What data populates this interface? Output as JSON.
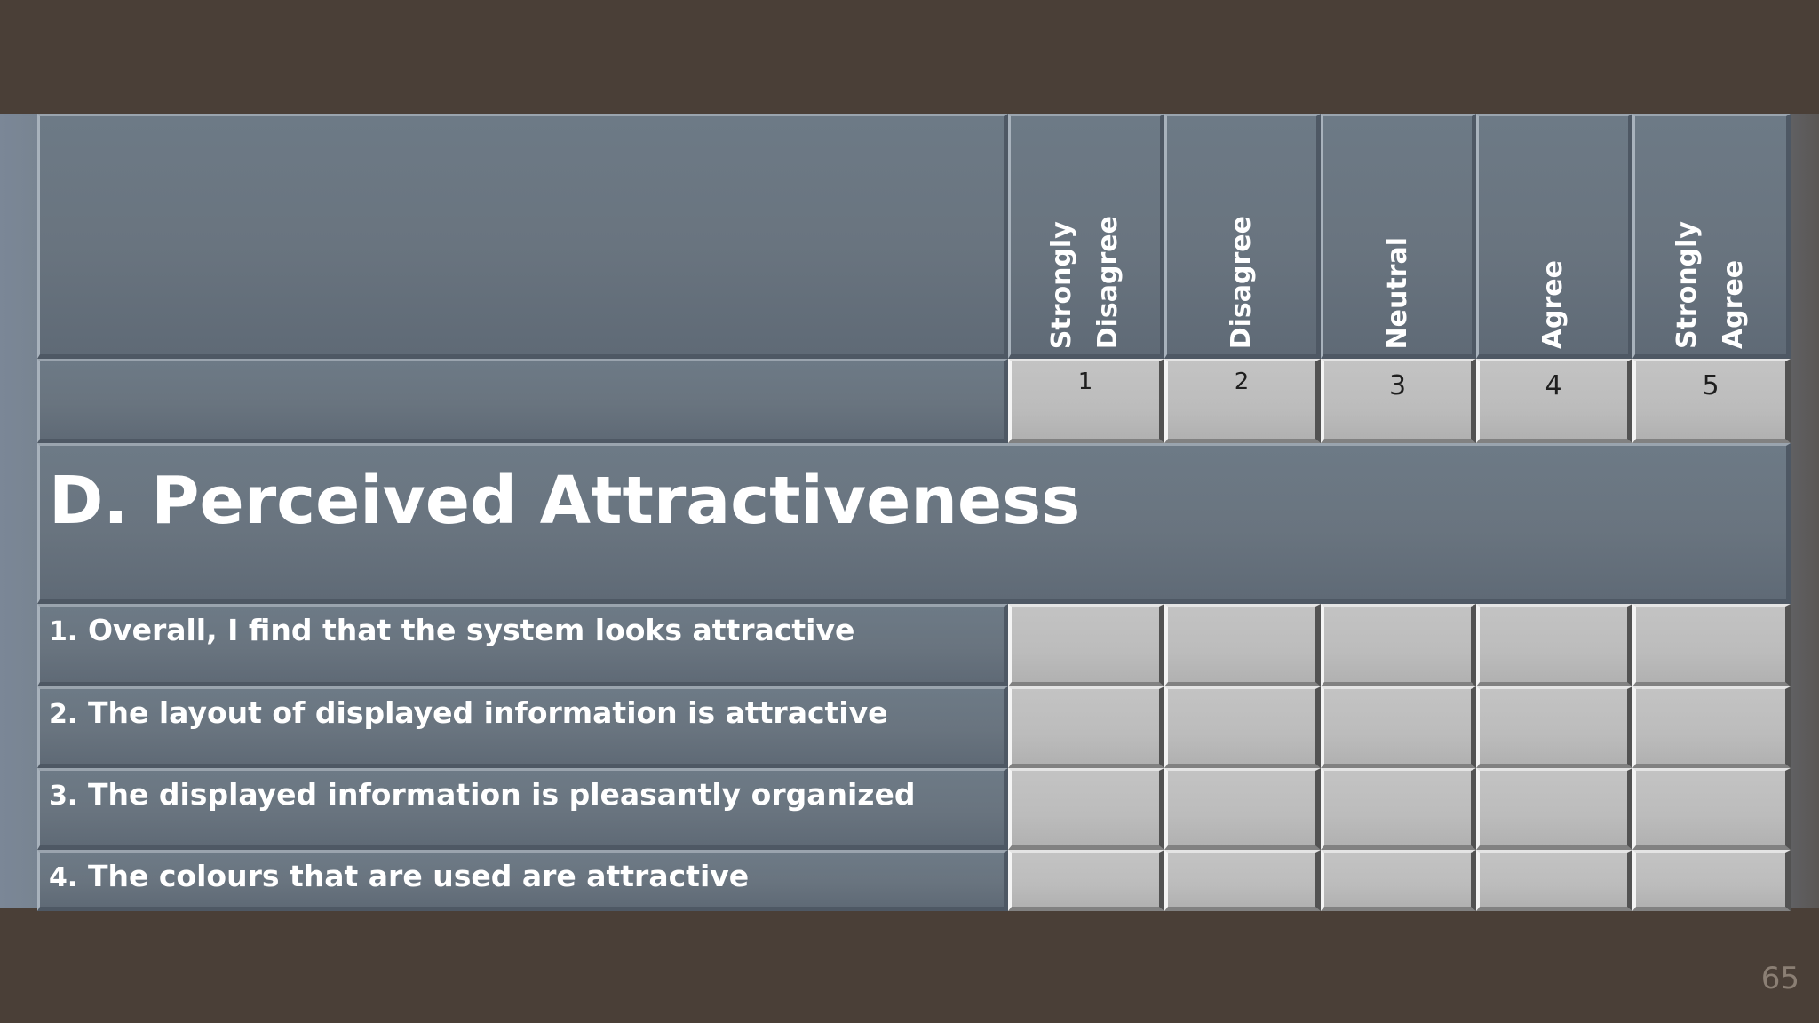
{
  "scale": {
    "labels": [
      [
        "Strongly",
        "Disagree"
      ],
      [
        "Disagree"
      ],
      [
        "Neutral"
      ],
      [
        "Agree"
      ],
      [
        "Strongly",
        "Agree"
      ]
    ],
    "numbers": [
      "1",
      "2",
      "3",
      "4",
      "5"
    ]
  },
  "section": {
    "title": "D. Perceived Attractiveness"
  },
  "questions": [
    {
      "num": "1.",
      "text": "Overall, I find that the system looks attractive"
    },
    {
      "num": "2.",
      "text": "The layout of displayed information is attractive"
    },
    {
      "num": "3.",
      "text": "The displayed information is pleasantly organized"
    },
    {
      "num": "4.",
      "text": "The colours that are used are attractive"
    }
  ],
  "slide_number": "65",
  "colors": {
    "background": "#4a3f37",
    "header_cell": "#6c7785",
    "answer_cell": "#bdbdbd",
    "text": "#ffffff"
  }
}
